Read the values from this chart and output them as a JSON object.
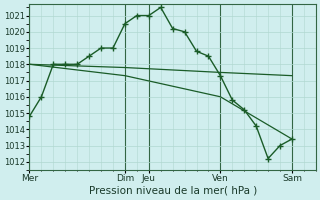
{
  "background_color": "#d0eeee",
  "grid_color_minor": "#b0d8d0",
  "grid_color_major": "#336644",
  "line_color": "#1a5c28",
  "xlabel": "Pression niveau de la mer( hPa )",
  "ylim": [
    1011.5,
    1021.7
  ],
  "yticks": [
    1012,
    1013,
    1014,
    1015,
    1016,
    1017,
    1018,
    1019,
    1020,
    1021
  ],
  "day_labels": [
    "Mer",
    "Dim",
    "Jeu",
    "Ven",
    "Sam"
  ],
  "day_positions": [
    0,
    96,
    120,
    192,
    264
  ],
  "total_hours": 288,
  "series1_x": [
    0,
    12,
    24,
    36,
    48,
    60,
    72,
    84,
    96,
    108,
    120,
    132,
    144,
    156,
    168,
    180,
    192,
    204,
    216,
    228,
    240,
    252,
    264
  ],
  "series1_y": [
    1014.8,
    1016.0,
    1018.0,
    1018.0,
    1018.0,
    1018.5,
    1019.0,
    1019.0,
    1020.5,
    1021.0,
    1021.0,
    1021.5,
    1020.2,
    1020.0,
    1018.8,
    1018.5,
    1017.3,
    1015.8,
    1015.2,
    1014.2,
    1012.2,
    1013.0,
    1013.4
  ],
  "series2_x": [
    0,
    96,
    192,
    264
  ],
  "series2_y": [
    1018.0,
    1017.8,
    1017.5,
    1017.3
  ],
  "series3_x": [
    0,
    96,
    192,
    264
  ],
  "series3_y": [
    1018.0,
    1017.3,
    1016.0,
    1013.4
  ],
  "ytick_fontsize": 6,
  "xtick_fontsize": 6.5,
  "xlabel_fontsize": 7.5
}
